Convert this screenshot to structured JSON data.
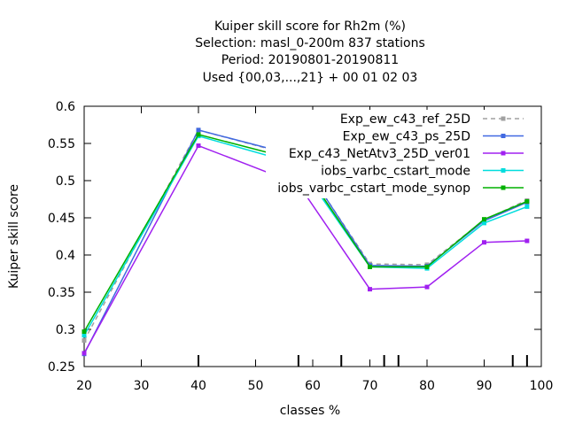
{
  "chart_data": {
    "type": "line",
    "title_lines": [
      "Kuiper skill score  for Rh2m (%)",
      "Selection: masl_0-200m    837 stations",
      "Period: 20190801-20190811",
      "Used {00,03,...,21} + 00 01 02 03"
    ],
    "xlabel": "classes %",
    "ylabel": "Kuiper skill score",
    "xlim": [
      20,
      100
    ],
    "ylim": [
      0.25,
      0.6
    ],
    "xticks": [
      "20",
      "30",
      "40",
      "50",
      "60",
      "70",
      "80",
      "90",
      "100"
    ],
    "yticks": [
      "0.25",
      "0.3",
      "0.35",
      "0.4",
      "0.45",
      "0.5",
      "0.55",
      "0.6"
    ],
    "x": [
      20,
      40,
      57.5,
      70,
      80,
      90,
      97.5
    ],
    "legend_position": "top-right",
    "series": [
      {
        "name": "Exp_ew_c43_ref_25D",
        "color": "#a0a0a0",
        "dashed": true,
        "values": [
          0.285,
          0.568,
          0.532,
          0.388,
          0.387,
          0.447,
          0.474
        ]
      },
      {
        "name": "Exp_ew_c43_ps_25D",
        "color": "#4169e1",
        "dashed": false,
        "values": [
          0.267,
          0.568,
          0.533,
          0.386,
          0.385,
          0.446,
          0.471
        ]
      },
      {
        "name": "Exp_c43_NetAtv3_25D_ver01",
        "color": "#a020f0",
        "dashed": false,
        "values": [
          0.268,
          0.547,
          0.495,
          0.354,
          0.357,
          0.417,
          0.419
        ]
      },
      {
        "name": "iobs_varbc_cstart_mode",
        "color": "#00dddd",
        "dashed": false,
        "values": [
          0.292,
          0.56,
          0.522,
          0.384,
          0.382,
          0.443,
          0.465
        ]
      },
      {
        "name": "iobs_varbc_cstart_mode_synop",
        "color": "#00b000",
        "dashed": false,
        "values": [
          0.297,
          0.562,
          0.527,
          0.384,
          0.384,
          0.448,
          0.472
        ]
      }
    ],
    "bottom_tick_marks_x": [
      40,
      57.5,
      65,
      72.5,
      75,
      95,
      97.5
    ]
  }
}
